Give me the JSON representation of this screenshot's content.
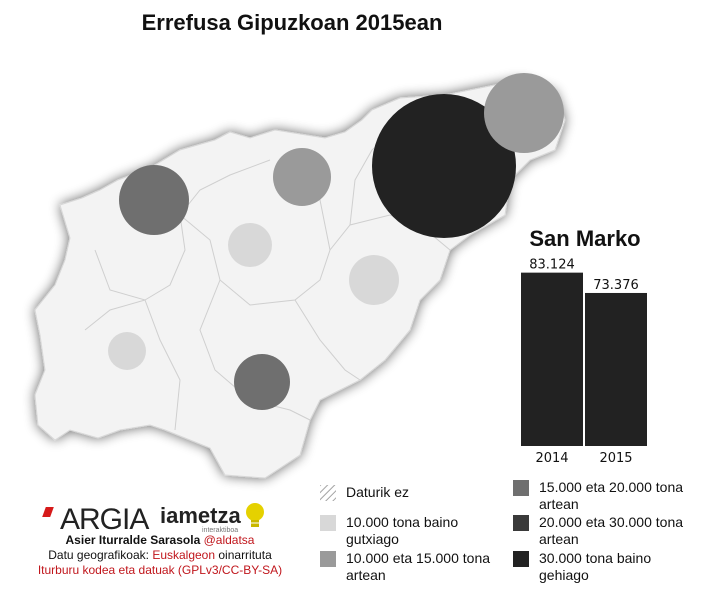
{
  "title": "Errefusa Gipuzkoan 2015ean",
  "side_chart": {
    "title": "San Marko",
    "chart_data": {
      "type": "bar",
      "categories": [
        "2014",
        "2015"
      ],
      "values": [
        83124,
        73376
      ],
      "value_labels": [
        "83.124",
        "73.376"
      ],
      "title": "San Marko",
      "ylim": [
        0,
        90000
      ]
    }
  },
  "legend": {
    "no_data": "Daturik ez",
    "classes": [
      {
        "label": "10.000 tona baino gutxiago",
        "color": "#d8d8d8"
      },
      {
        "label": "10.000 eta 15.000 tona artean",
        "color": "#9a9a9a"
      },
      {
        "label": "15.000 eta 20.000 tona artean",
        "color": "#6f6f6f"
      },
      {
        "label": "20.000 eta 30.000 tona artean",
        "color": "#3a3a3a"
      },
      {
        "label": "30.000 tona baino gehiago",
        "color": "#222222"
      }
    ]
  },
  "map": {
    "region_fill": "#f3f3f3",
    "shadow_color": "#b5b5b5",
    "region_stroke": "#ffffff",
    "bubbles": [
      {
        "class": 2
      },
      {
        "class": 1
      },
      {
        "class": 0
      },
      {
        "class": 4
      },
      {
        "class": 2
      },
      {
        "class": 0
      },
      {
        "class": 0
      },
      {
        "class": 1
      }
    ]
  },
  "logos": {
    "argia": "ARGIA",
    "iametza": "iametza",
    "iametza_sub": "interaktiboa"
  },
  "credits": {
    "author": "Asier Iturralde Sarasola",
    "author_handle": "@aldatsa",
    "geo_prefix": "Datu geografikoak:",
    "geo_source": "Euskalgeon",
    "geo_suffix": "oinarrituta",
    "license": "Iturburu kodea eta datuak (GPLv3/CC-BY-SA)"
  }
}
